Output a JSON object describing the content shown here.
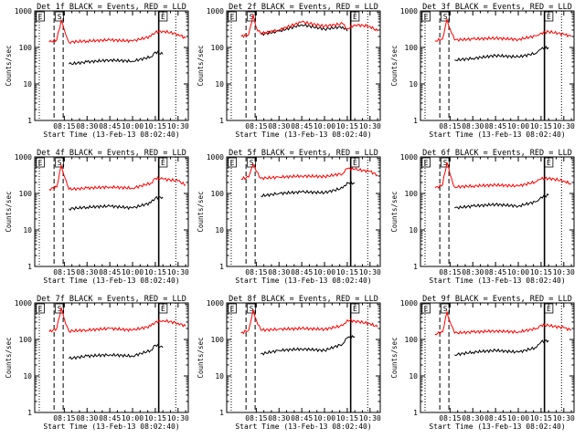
{
  "colors": {
    "events": "#000000",
    "lld": "#ff0000",
    "axes": "#000000",
    "background": "#ffffff"
  },
  "common": {
    "xlabel": "Start Time (13-Feb-13 08:02:40)",
    "ylabel": "Counts/sec",
    "x_ticks": [
      "08:15",
      "08:30",
      "08:45",
      "10:00",
      "10:15",
      "10:30"
    ],
    "y_ticks": [
      "1",
      "10",
      "100",
      "1000"
    ],
    "markers": [
      "E",
      "S",
      "E"
    ]
  },
  "chart_data": [
    {
      "type": "line",
      "title": "Det 1f BLACK = Events, RED = LLD",
      "x": [
        "08:05",
        "08:10",
        "08:13",
        "08:15",
        "08:18",
        "08:30",
        "08:45",
        "10:00",
        "10:12",
        "10:15",
        "10:20",
        "10:30",
        "10:35"
      ],
      "series": [
        {
          "name": "Events",
          "values": [
            null,
            null,
            null,
            null,
            35,
            40,
            45,
            42,
            55,
            75,
            65,
            null,
            null
          ]
        },
        {
          "name": "LLD",
          "values": [
            140,
            160,
            550,
            300,
            140,
            150,
            160,
            150,
            200,
            260,
            280,
            230,
            180
          ]
        }
      ],
      "yscale": "log",
      "ylim": [
        1,
        1000
      ]
    },
    {
      "type": "line",
      "title": "Det 2f BLACK = Events, RED = LLD",
      "x": [
        "08:05",
        "08:10",
        "08:13",
        "08:15",
        "08:18",
        "08:30",
        "08:45",
        "10:00",
        "10:12",
        "10:15",
        "10:20",
        "10:30",
        "10:35"
      ],
      "series": [
        {
          "name": "Events",
          "values": [
            null,
            null,
            null,
            null,
            230,
            280,
            420,
            320,
            370,
            280,
            null,
            null,
            null
          ]
        },
        {
          "name": "LLD",
          "values": [
            200,
            230,
            800,
            350,
            240,
            300,
            500,
            380,
            450,
            320,
            420,
            380,
            280
          ]
        }
      ],
      "yscale": "log",
      "ylim": [
        1,
        1000
      ]
    },
    {
      "type": "line",
      "title": "Det 3f BLACK = Events, RED = LLD",
      "x": [
        "08:05",
        "08:10",
        "08:13",
        "08:15",
        "08:18",
        "08:30",
        "08:45",
        "10:00",
        "10:12",
        "10:15",
        "10:20",
        "10:30",
        "10:35"
      ],
      "series": [
        {
          "name": "Events",
          "values": [
            null,
            null,
            null,
            null,
            45,
            50,
            60,
            55,
            70,
            90,
            100,
            null,
            null
          ]
        },
        {
          "name": "LLD",
          "values": [
            150,
            170,
            600,
            320,
            160,
            170,
            180,
            165,
            210,
            250,
            270,
            230,
            200
          ]
        }
      ],
      "yscale": "log",
      "ylim": [
        1,
        1000
      ]
    },
    {
      "type": "line",
      "title": "Det 4f BLACK = Events, RED = LLD",
      "x": [
        "08:05",
        "08:10",
        "08:13",
        "08:15",
        "08:18",
        "08:30",
        "08:45",
        "10:00",
        "10:12",
        "10:15",
        "10:20",
        "10:30",
        "10:35"
      ],
      "series": [
        {
          "name": "Events",
          "values": [
            null,
            null,
            null,
            null,
            38,
            42,
            45,
            40,
            55,
            75,
            80,
            null,
            null
          ]
        },
        {
          "name": "LLD",
          "values": [
            130,
            150,
            580,
            290,
            130,
            140,
            150,
            140,
            190,
            260,
            250,
            220,
            170
          ]
        }
      ],
      "yscale": "log",
      "ylim": [
        1,
        1000
      ]
    },
    {
      "type": "line",
      "title": "Det 5f BLACK = Events, RED = LLD",
      "x": [
        "08:05",
        "08:10",
        "08:13",
        "08:15",
        "08:18",
        "08:30",
        "08:45",
        "10:00",
        "10:12",
        "10:15",
        "10:20",
        "10:30",
        "10:35"
      ],
      "series": [
        {
          "name": "Events",
          "values": [
            null,
            null,
            null,
            null,
            85,
            100,
            110,
            105,
            140,
            200,
            190,
            null,
            null
          ]
        },
        {
          "name": "LLD",
          "values": [
            250,
            280,
            620,
            400,
            260,
            280,
            300,
            290,
            350,
            480,
            460,
            400,
            320
          ]
        }
      ],
      "yscale": "log",
      "ylim": [
        1,
        1000
      ]
    },
    {
      "type": "line",
      "title": "Det 6f BLACK = Events, RED = LLD",
      "x": [
        "08:05",
        "08:10",
        "08:13",
        "08:15",
        "08:18",
        "08:30",
        "08:45",
        "10:00",
        "10:12",
        "10:15",
        "10:20",
        "10:30",
        "10:35"
      ],
      "series": [
        {
          "name": "Events",
          "values": [
            null,
            null,
            null,
            null,
            40,
            45,
            50,
            45,
            60,
            80,
            90,
            null,
            null
          ]
        },
        {
          "name": "LLD",
          "values": [
            140,
            170,
            700,
            330,
            150,
            160,
            170,
            160,
            210,
            250,
            260,
            220,
            180
          ]
        }
      ],
      "yscale": "log",
      "ylim": [
        1,
        1000
      ]
    },
    {
      "type": "line",
      "title": "Det 7f BLACK = Events, RED = LLD",
      "x": [
        "08:05",
        "08:10",
        "08:13",
        "08:15",
        "08:18",
        "08:30",
        "08:45",
        "10:00",
        "10:12",
        "10:15",
        "10:20",
        "10:30",
        "10:35"
      ],
      "series": [
        {
          "name": "Events",
          "values": [
            null,
            null,
            null,
            null,
            30,
            35,
            38,
            35,
            50,
            70,
            60,
            null,
            null
          ]
        },
        {
          "name": "LLD",
          "values": [
            160,
            200,
            750,
            360,
            170,
            180,
            200,
            180,
            230,
            300,
            330,
            280,
            230
          ]
        }
      ],
      "yscale": "log",
      "ylim": [
        1,
        1000
      ]
    },
    {
      "type": "line",
      "title": "Det 8f BLACK = Events, RED = LLD",
      "x": [
        "08:05",
        "08:10",
        "08:13",
        "08:15",
        "08:18",
        "08:30",
        "08:45",
        "10:00",
        "10:12",
        "10:15",
        "10:20",
        "10:30",
        "10:35"
      ],
      "series": [
        {
          "name": "Events",
          "values": [
            null,
            null,
            null,
            null,
            40,
            50,
            55,
            50,
            75,
            110,
            120,
            null,
            null
          ]
        },
        {
          "name": "LLD",
          "values": [
            150,
            180,
            650,
            340,
            180,
            190,
            200,
            190,
            240,
            340,
            320,
            270,
            220
          ]
        }
      ],
      "yscale": "log",
      "ylim": [
        1,
        1000
      ]
    },
    {
      "type": "line",
      "title": "Det 9f BLACK = Events, RED = LLD",
      "x": [
        "08:05",
        "08:10",
        "08:13",
        "08:15",
        "08:18",
        "08:30",
        "08:45",
        "10:00",
        "10:12",
        "10:15",
        "10:20",
        "10:30",
        "10:35"
      ],
      "series": [
        {
          "name": "Events",
          "values": [
            null,
            null,
            null,
            null,
            38,
            45,
            50,
            45,
            60,
            85,
            95,
            null,
            null
          ]
        },
        {
          "name": "LLD",
          "values": [
            140,
            160,
            560,
            300,
            150,
            160,
            170,
            160,
            200,
            250,
            240,
            210,
            180
          ]
        }
      ],
      "yscale": "log",
      "ylim": [
        1,
        1000
      ]
    }
  ]
}
